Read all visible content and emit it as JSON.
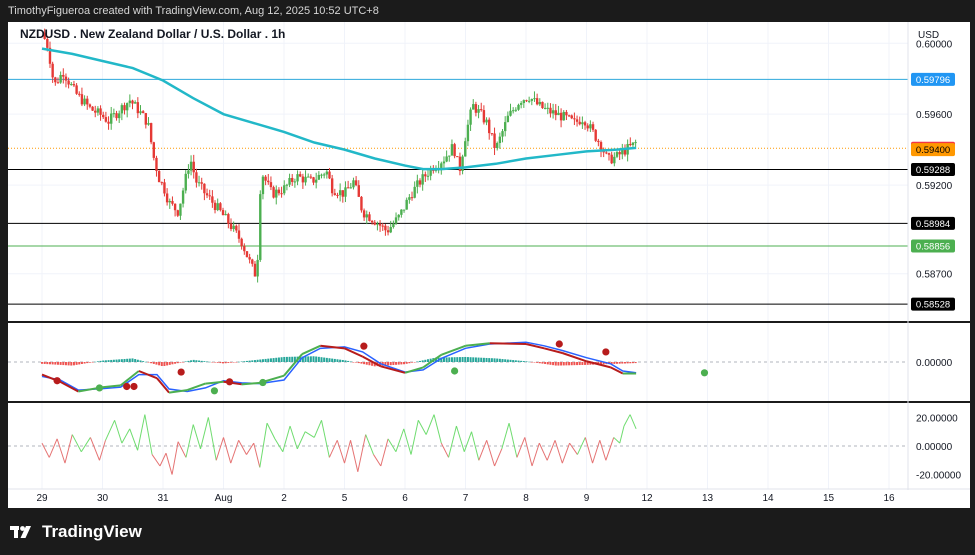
{
  "attribution": "TimothyFigueroa created with TradingView.com, Aug 12, 2025 10:52 UTC+8",
  "brand": "TradingView",
  "colors": {
    "background": "#ffffff",
    "frame": "#1b1b1b",
    "grid": "#f0f3fa",
    "up": "#26a69a",
    "candle_up": "#4caf50",
    "candle_down": "#e53935",
    "ma": "#22b8c8",
    "osc_up": "#4caf50",
    "osc_down": "#b71c1c",
    "hist_up": "#26a69a",
    "hist_down": "#ef5350",
    "rsi_line": "#8e8e8e"
  },
  "chart_data": [
    {
      "type": "candlestick",
      "title": "NZDUSD . New Zealand Dollar / U.S. Dollar . 1h",
      "currency": "USD",
      "ylim": [
        0.5845,
        0.6012
      ],
      "y_ticks": [
        "0.60000",
        "0.59600",
        "0.59200",
        "0.58700"
      ],
      "y_tick_values": [
        0.6,
        0.596,
        0.592,
        0.587
      ],
      "x_ticks": [
        "29",
        "30",
        "31",
        "Aug",
        "2",
        "5",
        "6",
        "7",
        "8",
        "9",
        "12",
        "13",
        "14",
        "15",
        "16"
      ],
      "x_tick_positions_bar": [
        0,
        1,
        2,
        3,
        4,
        5,
        6,
        7,
        8,
        9,
        10,
        11,
        12,
        13,
        14
      ],
      "price_lines": [
        {
          "value": 0.59796,
          "label": "0.59796",
          "line_color": "#2ea8dc",
          "tag_color": "#2196f3",
          "text_color": "#ffffff"
        },
        {
          "value": 0.59408,
          "label": "0.59408",
          "line_color": "#ff9800",
          "tag_color": "#f23645",
          "text_color": "#ffffff",
          "dotted": true
        },
        {
          "value": 0.594,
          "label": "0.59400",
          "line_color": "",
          "tag_color": "#ff9800",
          "text_color": "#000000"
        },
        {
          "value": 0.59288,
          "label": "0.59288",
          "line_color": "#000000",
          "tag_color": "#000000",
          "text_color": "#ffffff"
        },
        {
          "value": 0.58984,
          "label": "0.58984",
          "line_color": "#000000",
          "tag_color": "#000000",
          "text_color": "#ffffff"
        },
        {
          "value": 0.58856,
          "label": "0.58856",
          "line_color": "#4caf50",
          "tag_color": "#4caf50",
          "text_color": "#ffffff"
        },
        {
          "value": 0.58528,
          "label": "0.58528",
          "line_color": "#000000",
          "tag_color": "#000000",
          "text_color": "#ffffff"
        }
      ],
      "price_path": [
        {
          "t": 0.0,
          "p": 0.6006
        },
        {
          "t": 0.1,
          "p": 0.5998
        },
        {
          "t": 0.2,
          "p": 0.5976
        },
        {
          "t": 0.35,
          "p": 0.5984
        },
        {
          "t": 0.55,
          "p": 0.5972
        },
        {
          "t": 0.8,
          "p": 0.5963
        },
        {
          "t": 1.0,
          "p": 0.5959
        },
        {
          "t": 1.1,
          "p": 0.5956
        },
        {
          "t": 1.3,
          "p": 0.5963
        },
        {
          "t": 1.45,
          "p": 0.5968
        },
        {
          "t": 1.6,
          "p": 0.5962
        },
        {
          "t": 1.75,
          "p": 0.5955
        },
        {
          "t": 1.85,
          "p": 0.5935
        },
        {
          "t": 1.95,
          "p": 0.5922
        },
        {
          "t": 2.0,
          "p": 0.592
        },
        {
          "t": 2.1,
          "p": 0.591
        },
        {
          "t": 2.25,
          "p": 0.5905
        },
        {
          "t": 2.45,
          "p": 0.5935
        },
        {
          "t": 2.55,
          "p": 0.5922
        },
        {
          "t": 2.7,
          "p": 0.5915
        },
        {
          "t": 2.9,
          "p": 0.5907
        },
        {
          "t": 3.1,
          "p": 0.5898
        },
        {
          "t": 3.3,
          "p": 0.5888
        },
        {
          "t": 3.45,
          "p": 0.5875
        },
        {
          "t": 3.55,
          "p": 0.5868
        },
        {
          "t": 3.62,
          "p": 0.5928
        },
        {
          "t": 3.8,
          "p": 0.5915
        },
        {
          "t": 4.0,
          "p": 0.5918
        },
        {
          "t": 4.2,
          "p": 0.5925
        },
        {
          "t": 4.45,
          "p": 0.5922
        },
        {
          "t": 4.7,
          "p": 0.5928
        },
        {
          "t": 4.8,
          "p": 0.5918
        },
        {
          "t": 5.0,
          "p": 0.5915
        },
        {
          "t": 5.15,
          "p": 0.5922
        },
        {
          "t": 5.3,
          "p": 0.5905
        },
        {
          "t": 5.5,
          "p": 0.59
        },
        {
          "t": 5.7,
          "p": 0.5894
        },
        {
          "t": 5.9,
          "p": 0.5902
        },
        {
          "t": 6.1,
          "p": 0.5915
        },
        {
          "t": 6.25,
          "p": 0.5922
        },
        {
          "t": 6.45,
          "p": 0.593
        },
        {
          "t": 6.65,
          "p": 0.5935
        },
        {
          "t": 6.8,
          "p": 0.5942
        },
        {
          "t": 6.9,
          "p": 0.5928
        },
        {
          "t": 7.0,
          "p": 0.5948
        },
        {
          "t": 7.12,
          "p": 0.5965
        },
        {
          "t": 7.25,
          "p": 0.596
        },
        {
          "t": 7.35,
          "p": 0.5955
        },
        {
          "t": 7.5,
          "p": 0.594
        },
        {
          "t": 7.7,
          "p": 0.5958
        },
        {
          "t": 7.9,
          "p": 0.5968
        },
        {
          "t": 8.05,
          "p": 0.597
        },
        {
          "t": 8.2,
          "p": 0.5965
        },
        {
          "t": 8.35,
          "p": 0.5962
        },
        {
          "t": 8.5,
          "p": 0.596
        },
        {
          "t": 8.65,
          "p": 0.5958
        },
        {
          "t": 8.8,
          "p": 0.5955
        },
        {
          "t": 8.95,
          "p": 0.5958
        },
        {
          "t": 9.1,
          "p": 0.595
        },
        {
          "t": 9.25,
          "p": 0.5942
        },
        {
          "t": 9.35,
          "p": 0.5934
        },
        {
          "t": 9.5,
          "p": 0.5936
        },
        {
          "t": 9.65,
          "p": 0.594
        },
        {
          "t": 9.75,
          "p": 0.5942
        },
        {
          "t": 9.82,
          "p": 0.5944
        }
      ],
      "moving_average": [
        {
          "t": 0.0,
          "p": 0.5997
        },
        {
          "t": 0.5,
          "p": 0.5994
        },
        {
          "t": 1.0,
          "p": 0.599
        },
        {
          "t": 1.5,
          "p": 0.5986
        },
        {
          "t": 2.0,
          "p": 0.5979
        },
        {
          "t": 2.5,
          "p": 0.5969
        },
        {
          "t": 3.0,
          "p": 0.596
        },
        {
          "t": 3.5,
          "p": 0.5955
        },
        {
          "t": 4.0,
          "p": 0.595
        },
        {
          "t": 4.5,
          "p": 0.5944
        },
        {
          "t": 5.0,
          "p": 0.594
        },
        {
          "t": 5.5,
          "p": 0.5935
        },
        {
          "t": 6.0,
          "p": 0.5931
        },
        {
          "t": 6.3,
          "p": 0.5929
        },
        {
          "t": 6.6,
          "p": 0.5929
        },
        {
          "t": 7.0,
          "p": 0.593
        },
        {
          "t": 7.5,
          "p": 0.5932
        },
        {
          "t": 8.0,
          "p": 0.5935
        },
        {
          "t": 8.5,
          "p": 0.5937
        },
        {
          "t": 9.0,
          "p": 0.5939
        },
        {
          "t": 9.5,
          "p": 0.594
        },
        {
          "t": 9.82,
          "p": 0.5941
        }
      ]
    },
    {
      "type": "oscillator",
      "y_ticks": [
        "0.00000"
      ],
      "zero_value": 0,
      "ylim": [
        -1.0,
        1.0
      ],
      "signal": [
        {
          "t": 0.0,
          "v": -0.4
        },
        {
          "t": 0.3,
          "v": -0.5
        },
        {
          "t": 0.6,
          "v": -0.78
        },
        {
          "t": 1.0,
          "v": -0.74
        },
        {
          "t": 1.3,
          "v": -0.7
        },
        {
          "t": 1.6,
          "v": -0.35
        },
        {
          "t": 1.9,
          "v": -0.35
        },
        {
          "t": 2.1,
          "v": -0.75
        },
        {
          "t": 2.4,
          "v": -0.82
        },
        {
          "t": 2.7,
          "v": -0.72
        },
        {
          "t": 3.0,
          "v": -0.52
        },
        {
          "t": 3.3,
          "v": -0.58
        },
        {
          "t": 3.6,
          "v": -0.6
        },
        {
          "t": 4.0,
          "v": -0.5
        },
        {
          "t": 4.3,
          "v": 0.12
        },
        {
          "t": 4.6,
          "v": 0.38
        },
        {
          "t": 5.0,
          "v": 0.42
        },
        {
          "t": 5.3,
          "v": 0.28
        },
        {
          "t": 5.6,
          "v": -0.05
        },
        {
          "t": 6.0,
          "v": -0.28
        },
        {
          "t": 6.3,
          "v": -0.22
        },
        {
          "t": 6.6,
          "v": 0.1
        },
        {
          "t": 7.0,
          "v": 0.38
        },
        {
          "t": 7.4,
          "v": 0.5
        },
        {
          "t": 8.0,
          "v": 0.55
        },
        {
          "t": 8.3,
          "v": 0.45
        },
        {
          "t": 8.6,
          "v": 0.32
        },
        {
          "t": 9.0,
          "v": 0.12
        },
        {
          "t": 9.4,
          "v": -0.05
        },
        {
          "t": 9.6,
          "v": -0.25
        },
        {
          "t": 9.82,
          "v": -0.3
        }
      ],
      "wave": [
        {
          "t": 0.0,
          "v": -0.35
        },
        {
          "t": 0.3,
          "v": -0.55
        },
        {
          "t": 0.6,
          "v": -0.82
        },
        {
          "t": 1.0,
          "v": -0.7
        },
        {
          "t": 1.3,
          "v": -0.65
        },
        {
          "t": 1.6,
          "v": -0.25
        },
        {
          "t": 1.9,
          "v": -0.45
        },
        {
          "t": 2.1,
          "v": -0.85
        },
        {
          "t": 2.4,
          "v": -0.78
        },
        {
          "t": 2.7,
          "v": -0.6
        },
        {
          "t": 3.0,
          "v": -0.55
        },
        {
          "t": 3.3,
          "v": -0.62
        },
        {
          "t": 3.6,
          "v": -0.58
        },
        {
          "t": 4.0,
          "v": -0.38
        },
        {
          "t": 4.3,
          "v": 0.22
        },
        {
          "t": 4.6,
          "v": 0.45
        },
        {
          "t": 5.0,
          "v": 0.38
        },
        {
          "t": 5.3,
          "v": 0.15
        },
        {
          "t": 5.6,
          "v": -0.12
        },
        {
          "t": 6.0,
          "v": -0.3
        },
        {
          "t": 6.3,
          "v": -0.15
        },
        {
          "t": 6.6,
          "v": 0.2
        },
        {
          "t": 7.0,
          "v": 0.45
        },
        {
          "t": 7.4,
          "v": 0.52
        },
        {
          "t": 8.0,
          "v": 0.5
        },
        {
          "t": 8.3,
          "v": 0.38
        },
        {
          "t": 8.6,
          "v": 0.25
        },
        {
          "t": 9.0,
          "v": 0.02
        },
        {
          "t": 9.4,
          "v": -0.15
        },
        {
          "t": 9.6,
          "v": -0.32
        },
        {
          "t": 9.82,
          "v": -0.32
        }
      ],
      "dots": [
        {
          "t": 0.25,
          "v": -0.52,
          "color": "#b71c1c"
        },
        {
          "t": 0.95,
          "v": -0.72,
          "color": "#4caf50"
        },
        {
          "t": 1.4,
          "v": -0.68,
          "color": "#b71c1c"
        },
        {
          "t": 1.52,
          "v": -0.68,
          "color": "#b71c1c"
        },
        {
          "t": 2.3,
          "v": -0.28,
          "color": "#b71c1c"
        },
        {
          "t": 2.85,
          "v": -0.8,
          "color": "#4caf50"
        },
        {
          "t": 3.1,
          "v": -0.55,
          "color": "#b71c1c"
        },
        {
          "t": 3.65,
          "v": -0.57,
          "color": "#4caf50"
        },
        {
          "t": 5.32,
          "v": 0.44,
          "color": "#b71c1c"
        },
        {
          "t": 6.82,
          "v": -0.25,
          "color": "#4caf50"
        },
        {
          "t": 8.55,
          "v": 0.5,
          "color": "#b71c1c"
        },
        {
          "t": 9.32,
          "v": 0.28,
          "color": "#b71c1c"
        },
        {
          "t": 10.95,
          "v": -0.3,
          "color": "#4caf50"
        }
      ],
      "histogram": [
        {
          "t": 0.0,
          "v": -0.05
        },
        {
          "t": 0.5,
          "v": -0.1
        },
        {
          "t": 1.0,
          "v": 0.04
        },
        {
          "t": 1.5,
          "v": 0.1
        },
        {
          "t": 2.0,
          "v": -0.12
        },
        {
          "t": 2.5,
          "v": 0.06
        },
        {
          "t": 3.0,
          "v": -0.04
        },
        {
          "t": 3.5,
          "v": 0.05
        },
        {
          "t": 4.0,
          "v": 0.14
        },
        {
          "t": 4.5,
          "v": 0.16
        },
        {
          "t": 5.0,
          "v": 0.05
        },
        {
          "t": 5.5,
          "v": -0.12
        },
        {
          "t": 6.0,
          "v": -0.06
        },
        {
          "t": 6.5,
          "v": 0.12
        },
        {
          "t": 7.0,
          "v": 0.14
        },
        {
          "t": 7.5,
          "v": 0.1
        },
        {
          "t": 8.0,
          "v": 0.02
        },
        {
          "t": 8.5,
          "v": -0.1
        },
        {
          "t": 9.0,
          "v": -0.08
        },
        {
          "t": 9.5,
          "v": -0.05
        },
        {
          "t": 9.8,
          "v": -0.03
        }
      ]
    },
    {
      "type": "line",
      "y_ticks": [
        "20.00000",
        "0.00000",
        "-20.00000"
      ],
      "y_tick_values": [
        20,
        0,
        -20
      ],
      "ylim": [
        -28,
        28
      ],
      "values": [
        {
          "t": 0.0,
          "v": 2
        },
        {
          "t": 0.12,
          "v": -8
        },
        {
          "t": 0.25,
          "v": 5
        },
        {
          "t": 0.38,
          "v": -12
        },
        {
          "t": 0.5,
          "v": 8
        },
        {
          "t": 0.65,
          "v": -4
        },
        {
          "t": 0.8,
          "v": 6
        },
        {
          "t": 0.95,
          "v": -10
        },
        {
          "t": 1.05,
          "v": 4
        },
        {
          "t": 1.2,
          "v": 18
        },
        {
          "t": 1.32,
          "v": 2
        },
        {
          "t": 1.45,
          "v": 12
        },
        {
          "t": 1.58,
          "v": -3
        },
        {
          "t": 1.7,
          "v": 22
        },
        {
          "t": 1.82,
          "v": -6
        },
        {
          "t": 1.95,
          "v": -14
        },
        {
          "t": 2.05,
          "v": -5
        },
        {
          "t": 2.15,
          "v": -20
        },
        {
          "t": 2.25,
          "v": 3
        },
        {
          "t": 2.38,
          "v": -8
        },
        {
          "t": 2.5,
          "v": 15
        },
        {
          "t": 2.62,
          "v": -2
        },
        {
          "t": 2.75,
          "v": 20
        },
        {
          "t": 2.88,
          "v": -10
        },
        {
          "t": 3.0,
          "v": 6
        },
        {
          "t": 3.12,
          "v": -12
        },
        {
          "t": 3.25,
          "v": 4
        },
        {
          "t": 3.38,
          "v": -6
        },
        {
          "t": 3.5,
          "v": 2
        },
        {
          "t": 3.6,
          "v": -15
        },
        {
          "t": 3.72,
          "v": 16
        },
        {
          "t": 3.85,
          "v": 5
        },
        {
          "t": 3.98,
          "v": -4
        },
        {
          "t": 4.1,
          "v": 14
        },
        {
          "t": 4.22,
          "v": -2
        },
        {
          "t": 4.35,
          "v": 10
        },
        {
          "t": 4.5,
          "v": 6
        },
        {
          "t": 4.62,
          "v": 18
        },
        {
          "t": 4.75,
          "v": -8
        },
        {
          "t": 4.88,
          "v": 4
        },
        {
          "t": 5.0,
          "v": -12
        },
        {
          "t": 5.1,
          "v": 4
        },
        {
          "t": 5.22,
          "v": -18
        },
        {
          "t": 5.35,
          "v": 8
        },
        {
          "t": 5.48,
          "v": -6
        },
        {
          "t": 5.6,
          "v": -14
        },
        {
          "t": 5.72,
          "v": 5
        },
        {
          "t": 5.85,
          "v": -4
        },
        {
          "t": 5.98,
          "v": 12
        },
        {
          "t": 6.1,
          "v": -6
        },
        {
          "t": 6.22,
          "v": 18
        },
        {
          "t": 6.35,
          "v": 8
        },
        {
          "t": 6.48,
          "v": 22
        },
        {
          "t": 6.6,
          "v": 2
        },
        {
          "t": 6.72,
          "v": -8
        },
        {
          "t": 6.85,
          "v": 14
        },
        {
          "t": 6.98,
          "v": -4
        },
        {
          "t": 7.1,
          "v": 10
        },
        {
          "t": 7.22,
          "v": -10
        },
        {
          "t": 7.35,
          "v": 4
        },
        {
          "t": 7.48,
          "v": -14
        },
        {
          "t": 7.6,
          "v": -2
        },
        {
          "t": 7.72,
          "v": 16
        },
        {
          "t": 7.85,
          "v": -8
        },
        {
          "t": 7.98,
          "v": 6
        },
        {
          "t": 8.1,
          "v": -14
        },
        {
          "t": 8.22,
          "v": 2
        },
        {
          "t": 8.35,
          "v": -10
        },
        {
          "t": 8.48,
          "v": 4
        },
        {
          "t": 8.6,
          "v": -12
        },
        {
          "t": 8.72,
          "v": 2
        },
        {
          "t": 8.85,
          "v": -6
        },
        {
          "t": 8.98,
          "v": 6
        },
        {
          "t": 9.1,
          "v": -12
        },
        {
          "t": 9.22,
          "v": 4
        },
        {
          "t": 9.32,
          "v": -10
        },
        {
          "t": 9.45,
          "v": 6
        },
        {
          "t": 9.55,
          "v": 2
        },
        {
          "t": 9.62,
          "v": 14
        },
        {
          "t": 9.72,
          "v": 22
        },
        {
          "t": 9.82,
          "v": 12
        }
      ]
    }
  ]
}
